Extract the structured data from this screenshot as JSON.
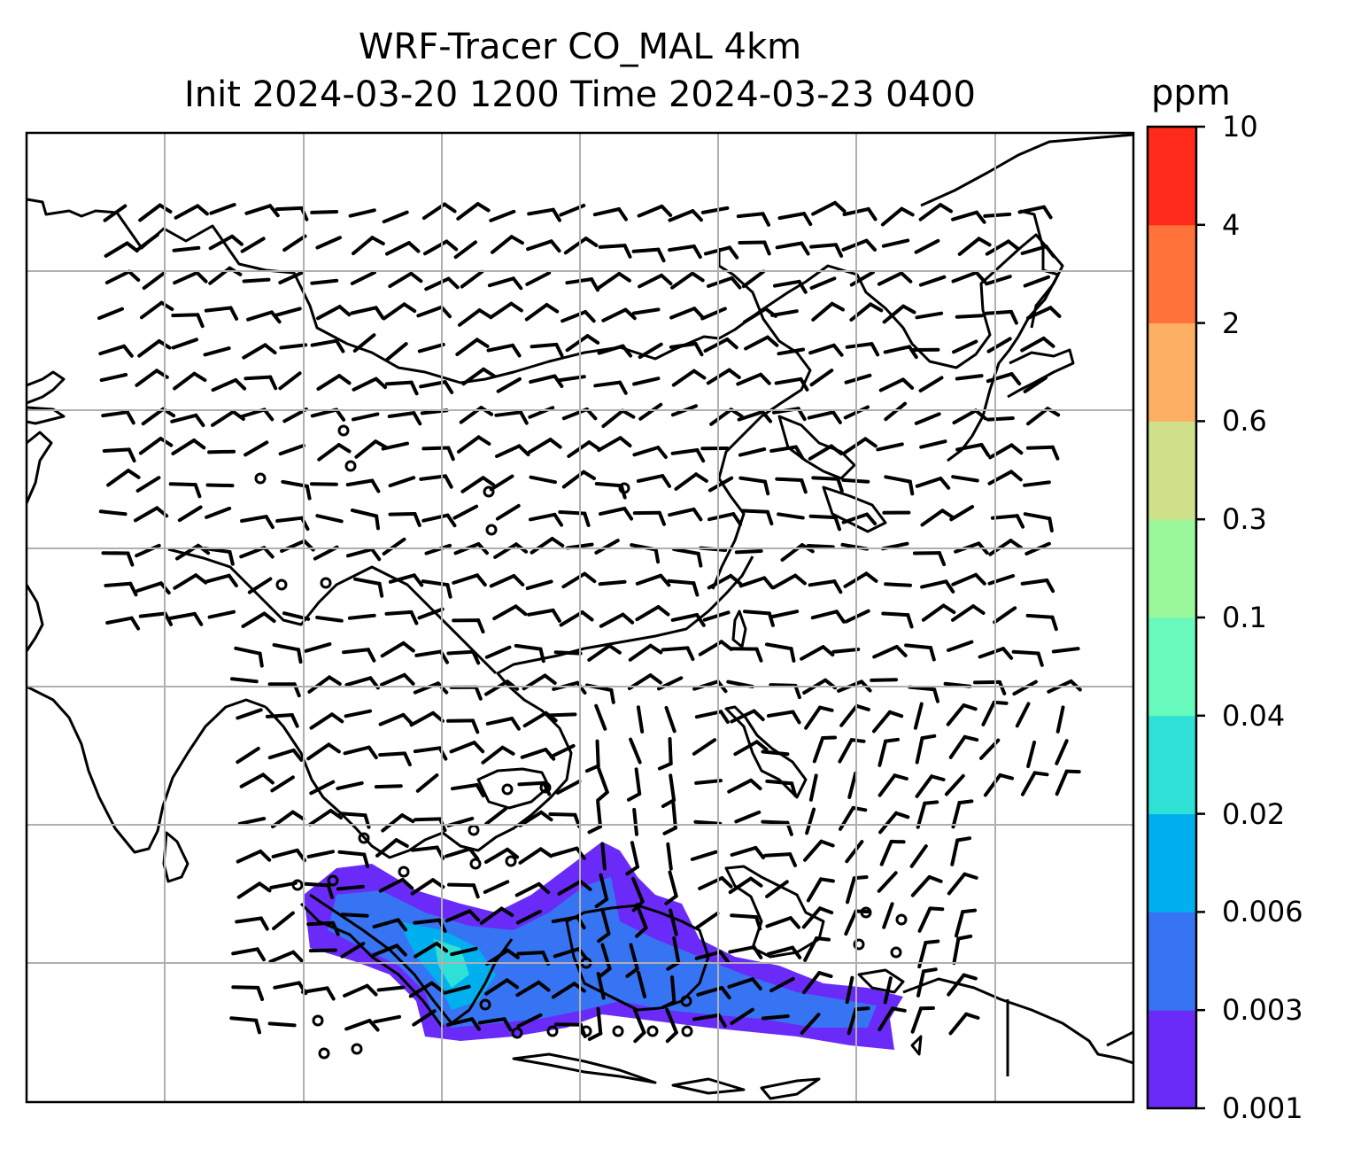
{
  "title": {
    "line1": "WRF-Tracer CO_MAL 4km",
    "line2": "Init 2024-03-20 1200 Time 2024-03-23 0400"
  },
  "colorbar": {
    "unit": "ppm",
    "levels": [
      "0.001",
      "0.003",
      "0.006",
      "0.02",
      "0.04",
      "0.1",
      "0.3",
      "0.6",
      "2",
      "4",
      "10"
    ],
    "colors": [
      "#6a2bf8",
      "#3674f3",
      "#00b0ee",
      "#2ee0d6",
      "#68fabc",
      "#9af79a",
      "#cfe08a",
      "#fdb063",
      "#ff733a",
      "#ff2a19"
    ]
  },
  "map": {
    "region": "Southeast & East Asia",
    "wind_barbs": "wind barbs over domain",
    "tracer_plume": "CO tracer plume over Java Sea / southern Sumatra–Borneo"
  }
}
